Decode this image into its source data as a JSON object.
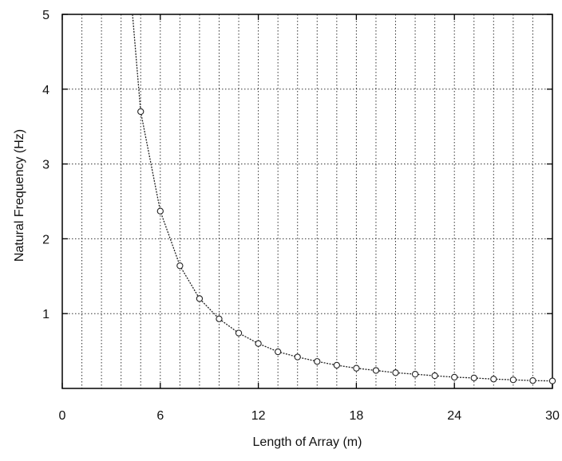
{
  "chart_data": {
    "type": "line",
    "xlabel": "Length of Array  (m)",
    "ylabel": "Natural Frequency (Hz)",
    "xlim": [
      0,
      30
    ],
    "ylim": [
      0,
      5
    ],
    "xticks": [
      0,
      6,
      12,
      18,
      24,
      30
    ],
    "yticks": [
      1,
      2,
      3,
      4,
      5
    ],
    "x_minor_step": 1.2,
    "grid": true,
    "legend": "none",
    "series": [
      {
        "marker": "circle",
        "line_style": "dotted",
        "x": [
          4.3,
          4.8,
          6.0,
          7.2,
          8.4,
          9.6,
          10.8,
          12.0,
          13.2,
          14.4,
          15.6,
          16.8,
          18.0,
          19.2,
          20.4,
          21.6,
          22.8,
          24.0,
          25.2,
          26.4,
          27.6,
          28.8,
          30.0
        ],
        "y": [
          5.1,
          3.7,
          2.37,
          1.64,
          1.2,
          0.93,
          0.74,
          0.6,
          0.49,
          0.42,
          0.36,
          0.31,
          0.27,
          0.24,
          0.21,
          0.19,
          0.17,
          0.15,
          0.14,
          0.125,
          0.115,
          0.105,
          0.1
        ],
        "marked": [
          false,
          true,
          true,
          true,
          true,
          true,
          true,
          true,
          true,
          true,
          true,
          true,
          true,
          true,
          true,
          true,
          true,
          true,
          true,
          true,
          true,
          true,
          true
        ]
      }
    ]
  },
  "colors": {
    "line": "#222222",
    "grid": "#333333",
    "axis": "#000000"
  }
}
